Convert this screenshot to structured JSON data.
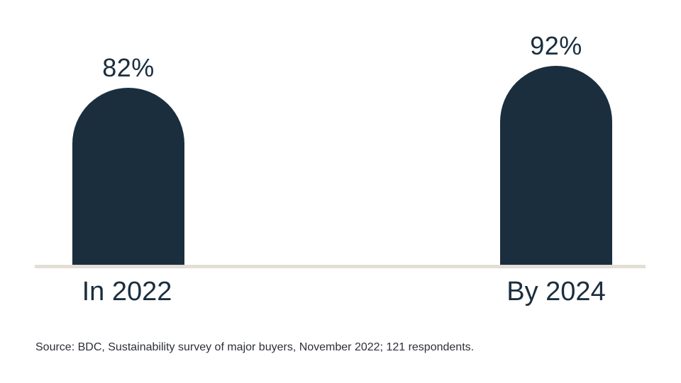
{
  "chart_data": {
    "type": "bar",
    "title": "",
    "categories": [
      "In 2022",
      "By 2024"
    ],
    "values": [
      82,
      92
    ],
    "data_labels": [
      "82%",
      "92%"
    ],
    "xlabel": "",
    "ylabel": "",
    "unit": "%",
    "ylim": [
      0,
      100
    ],
    "grid": false,
    "legend": "none",
    "bar_color": "#1b2e3e",
    "baseline_color": "#e3ded6",
    "text_color": "#1b2e3e"
  },
  "source": {
    "text": "Source: BDC, Sustainability survey of major buyers, November 2022; 121 respondents."
  }
}
